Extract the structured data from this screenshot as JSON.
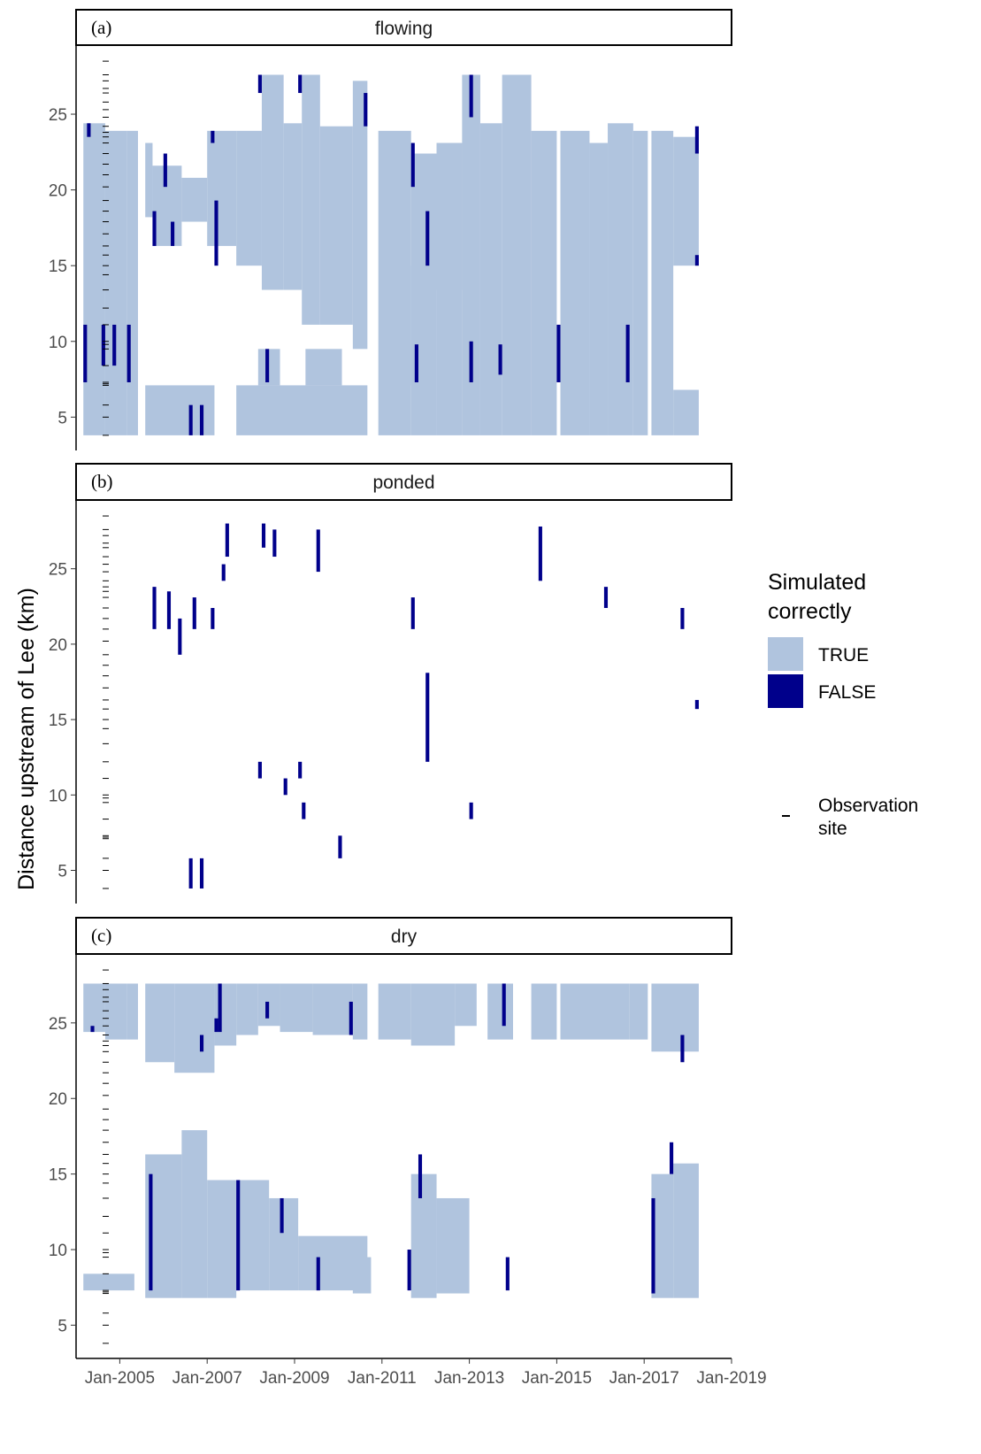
{
  "chart_data": {
    "type": "heatmap",
    "ylabel": "Distance upstream of Lee (km)",
    "xlim": [
      "2004-01",
      "2019-01"
    ],
    "ylim": [
      2.8,
      29.5
    ],
    "x_ticks": [
      "Jan-2005",
      "Jan-2007",
      "Jan-2009",
      "Jan-2011",
      "Jan-2013",
      "Jan-2015",
      "Jan-2017",
      "Jan-2019"
    ],
    "y_ticks": [
      5,
      10,
      15,
      20,
      25
    ],
    "colors": {
      "TRUE": "#b0c4de",
      "FALSE": "#00008b"
    },
    "legend": {
      "title_line1": "Simulated",
      "title_line2": "correctly",
      "true_label": "TRUE",
      "false_label": "FALSE",
      "obs_label_line1": "Observation",
      "obs_label_line2": "site",
      "placement": "right"
    },
    "observation_sites_km": [
      3.8,
      5.0,
      5.8,
      7.1,
      7.2,
      7.3,
      8.4,
      9.5,
      9.8,
      10.0,
      11.1,
      12.2,
      13.4,
      14.4,
      15.0,
      15.7,
      16.3,
      17.1,
      17.9,
      18.6,
      19.3,
      20.2,
      21.0,
      21.7,
      22.4,
      23.1,
      23.5,
      23.8,
      24.2,
      24.8,
      25.3,
      25.8,
      26.4,
      26.7,
      27.2,
      27.6,
      28.5
    ],
    "panels": [
      {
        "tag": "(a)",
        "title": "flowing",
        "true_blocks": [
          {
            "x0": "2004-03",
            "x1": "2004-09",
            "y0": 3.8,
            "y1": 24.4
          },
          {
            "x0": "2004-09",
            "x1": "2005-03",
            "y0": 3.8,
            "y1": 23.9
          },
          {
            "x0": "2005-03",
            "x1": "2005-06",
            "y0": 3.8,
            "y1": 23.9
          },
          {
            "x0": "2005-08",
            "x1": "2007-03",
            "y0": 3.8,
            "y1": 7.1
          },
          {
            "x0": "2005-08",
            "x1": "2005-10",
            "y0": 18.2,
            "y1": 23.1
          },
          {
            "x0": "2005-10",
            "x1": "2006-06",
            "y0": 16.3,
            "y1": 21.6
          },
          {
            "x0": "2006-06",
            "x1": "2007-01",
            "y0": 17.9,
            "y1": 20.8
          },
          {
            "x0": "2007-01",
            "x1": "2007-09",
            "y0": 16.3,
            "y1": 23.9
          },
          {
            "x0": "2007-09",
            "x1": "2008-04",
            "y0": 15.0,
            "y1": 23.9
          },
          {
            "x0": "2007-09",
            "x1": "2010-09",
            "y0": 3.8,
            "y1": 7.1
          },
          {
            "x0": "2008-04",
            "x1": "2008-10",
            "y0": 13.4,
            "y1": 27.6
          },
          {
            "x0": "2008-10",
            "x1": "2009-03",
            "y0": 13.4,
            "y1": 24.4
          },
          {
            "x0": "2009-03",
            "x1": "2009-08",
            "y0": 11.1,
            "y1": 27.6
          },
          {
            "x0": "2009-08",
            "x1": "2010-05",
            "y0": 11.1,
            "y1": 24.2
          },
          {
            "x0": "2010-05",
            "x1": "2010-09",
            "y0": 9.5,
            "y1": 27.2
          },
          {
            "x0": "2008-03",
            "x1": "2008-09",
            "y0": 7.1,
            "y1": 9.5
          },
          {
            "x0": "2009-04",
            "x1": "2010-02",
            "y0": 7.1,
            "y1": 9.5
          },
          {
            "x0": "2010-12",
            "x1": "2011-09",
            "y0": 3.8,
            "y1": 23.9
          },
          {
            "x0": "2011-09",
            "x1": "2012-04",
            "y0": 3.8,
            "y1": 22.4
          },
          {
            "x0": "2011-09",
            "x1": "2012-01",
            "y0": 7.1,
            "y1": 15.0
          },
          {
            "x0": "2012-04",
            "x1": "2012-11",
            "y0": 3.8,
            "y1": 23.1
          },
          {
            "x0": "2012-04",
            "x1": "2012-11",
            "y0": 13.4,
            "y1": 23.1
          },
          {
            "x0": "2012-11",
            "x1": "2013-04",
            "y0": 3.8,
            "y1": 27.6
          },
          {
            "x0": "2013-04",
            "x1": "2013-10",
            "y0": 3.8,
            "y1": 24.4
          },
          {
            "x0": "2013-10",
            "x1": "2014-06",
            "y0": 3.8,
            "y1": 27.6
          },
          {
            "x0": "2014-06",
            "x1": "2015-01",
            "y0": 3.8,
            "y1": 23.9
          },
          {
            "x0": "2015-02",
            "x1": "2015-10",
            "y0": 3.8,
            "y1": 23.9
          },
          {
            "x0": "2015-10",
            "x1": "2016-03",
            "y0": 3.8,
            "y1": 23.1
          },
          {
            "x0": "2016-03",
            "x1": "2016-10",
            "y0": 3.8,
            "y1": 24.4
          },
          {
            "x0": "2016-10",
            "x1": "2017-02",
            "y0": 3.8,
            "y1": 23.9
          },
          {
            "x0": "2017-03",
            "x1": "2017-09",
            "y0": 3.8,
            "y1": 23.9
          },
          {
            "x0": "2017-09",
            "x1": "2018-04",
            "y0": 3.8,
            "y1": 6.8
          },
          {
            "x0": "2017-09",
            "x1": "2018-04",
            "y0": 15.0,
            "y1": 23.5
          }
        ],
        "false_marks": [
          {
            "x": "2004-03",
            "y0": 7.3,
            "y1": 11.1
          },
          {
            "x": "2004-04",
            "y0": 23.5,
            "y1": 24.4
          },
          {
            "x": "2004-08",
            "y0": 8.4,
            "y1": 11.1
          },
          {
            "x": "2004-11",
            "y0": 8.4,
            "y1": 11.1
          },
          {
            "x": "2005-03",
            "y0": 7.3,
            "y1": 11.1
          },
          {
            "x": "2005-10",
            "y0": 16.3,
            "y1": 18.6
          },
          {
            "x": "2006-01",
            "y0": 20.2,
            "y1": 22.4
          },
          {
            "x": "2006-03",
            "y0": 16.3,
            "y1": 17.9
          },
          {
            "x": "2006-08",
            "y0": 3.8,
            "y1": 5.8
          },
          {
            "x": "2006-11",
            "y0": 3.8,
            "y1": 5.8
          },
          {
            "x": "2007-02",
            "y0": 23.1,
            "y1": 23.9
          },
          {
            "x": "2007-03",
            "y0": 15.0,
            "y1": 19.3
          },
          {
            "x": "2008-03",
            "y0": 26.4,
            "y1": 27.6
          },
          {
            "x": "2008-05",
            "y0": 7.3,
            "y1": 9.5
          },
          {
            "x": "2009-02",
            "y0": 26.4,
            "y1": 27.6
          },
          {
            "x": "2010-08",
            "y0": 24.2,
            "y1": 26.4
          },
          {
            "x": "2011-09",
            "y0": 20.2,
            "y1": 23.1
          },
          {
            "x": "2011-10",
            "y0": 7.3,
            "y1": 9.8
          },
          {
            "x": "2012-01",
            "y0": 15.0,
            "y1": 18.6
          },
          {
            "x": "2013-01",
            "y0": 24.8,
            "y1": 27.6
          },
          {
            "x": "2013-01",
            "y0": 7.3,
            "y1": 10.0
          },
          {
            "x": "2013-09",
            "y0": 7.8,
            "y1": 9.8
          },
          {
            "x": "2015-01",
            "y0": 7.3,
            "y1": 11.1
          },
          {
            "x": "2016-08",
            "y0": 7.3,
            "y1": 11.1
          },
          {
            "x": "2018-03",
            "y0": 15.0,
            "y1": 15.7
          },
          {
            "x": "2018-03",
            "y0": 22.4,
            "y1": 24.2
          }
        ]
      },
      {
        "tag": "(b)",
        "title": "ponded",
        "true_blocks": [],
        "false_marks": [
          {
            "x": "2006-08",
            "y0": 3.8,
            "y1": 5.8
          },
          {
            "x": "2006-11",
            "y0": 3.8,
            "y1": 5.8
          },
          {
            "x": "2005-10",
            "y0": 21.0,
            "y1": 23.8
          },
          {
            "x": "2006-02",
            "y0": 21.0,
            "y1": 23.5
          },
          {
            "x": "2006-05",
            "y0": 19.3,
            "y1": 21.7
          },
          {
            "x": "2006-09",
            "y0": 21.0,
            "y1": 23.1
          },
          {
            "x": "2007-02",
            "y0": 21.0,
            "y1": 22.4
          },
          {
            "x": "2007-05",
            "y0": 24.2,
            "y1": 25.3
          },
          {
            "x": "2007-06",
            "y0": 25.8,
            "y1": 28.0
          },
          {
            "x": "2008-04",
            "y0": 26.4,
            "y1": 28.0
          },
          {
            "x": "2008-07",
            "y0": 25.8,
            "y1": 27.6
          },
          {
            "x": "2009-07",
            "y0": 24.8,
            "y1": 27.6
          },
          {
            "x": "2008-03",
            "y0": 11.1,
            "y1": 12.2
          },
          {
            "x": "2008-10",
            "y0": 10.0,
            "y1": 11.1
          },
          {
            "x": "2009-02",
            "y0": 11.1,
            "y1": 12.2
          },
          {
            "x": "2009-03",
            "y0": 8.4,
            "y1": 9.5
          },
          {
            "x": "2010-01",
            "y0": 5.8,
            "y1": 7.3
          },
          {
            "x": "2011-09",
            "y0": 21.0,
            "y1": 23.1
          },
          {
            "x": "2012-01",
            "y0": 12.2,
            "y1": 18.1
          },
          {
            "x": "2013-01",
            "y0": 8.4,
            "y1": 9.5
          },
          {
            "x": "2014-08",
            "y0": 24.2,
            "y1": 27.8
          },
          {
            "x": "2016-02",
            "y0": 22.4,
            "y1": 23.8
          },
          {
            "x": "2017-11",
            "y0": 21.0,
            "y1": 22.4
          },
          {
            "x": "2018-03",
            "y0": 15.7,
            "y1": 16.3
          }
        ]
      },
      {
        "tag": "(c)",
        "title": "dry",
        "true_blocks": [
          {
            "x0": "2004-03",
            "x1": "2004-09",
            "y0": 24.4,
            "y1": 27.6
          },
          {
            "x0": "2004-09",
            "x1": "2005-03",
            "y0": 23.9,
            "y1": 27.6
          },
          {
            "x0": "2005-03",
            "x1": "2005-06",
            "y0": 23.9,
            "y1": 27.6
          },
          {
            "x0": "2005-08",
            "x1": "2006-04",
            "y0": 22.4,
            "y1": 27.6
          },
          {
            "x0": "2006-04",
            "x1": "2007-03",
            "y0": 21.7,
            "y1": 27.6
          },
          {
            "x0": "2007-03",
            "x1": "2007-09",
            "y0": 23.5,
            "y1": 27.6
          },
          {
            "x0": "2007-09",
            "x1": "2008-03",
            "y0": 24.2,
            "y1": 27.6
          },
          {
            "x0": "2008-03",
            "x1": "2008-09",
            "y0": 24.8,
            "y1": 27.6
          },
          {
            "x0": "2008-09",
            "x1": "2009-06",
            "y0": 24.4,
            "y1": 27.6
          },
          {
            "x0": "2009-06",
            "x1": "2010-05",
            "y0": 24.2,
            "y1": 27.6
          },
          {
            "x0": "2010-05",
            "x1": "2010-09",
            "y0": 23.9,
            "y1": 27.6
          },
          {
            "x0": "2010-12",
            "x1": "2011-09",
            "y0": 23.9,
            "y1": 27.6
          },
          {
            "x0": "2011-09",
            "x1": "2012-09",
            "y0": 23.5,
            "y1": 27.6
          },
          {
            "x0": "2012-09",
            "x1": "2013-03",
            "y0": 24.8,
            "y1": 27.6
          },
          {
            "x0": "2013-06",
            "x1": "2014-01",
            "y0": 23.9,
            "y1": 27.6
          },
          {
            "x0": "2014-06",
            "x1": "2015-01",
            "y0": 23.9,
            "y1": 27.6
          },
          {
            "x0": "2015-02",
            "x1": "2016-09",
            "y0": 23.9,
            "y1": 27.6
          },
          {
            "x0": "2016-09",
            "x1": "2017-02",
            "y0": 23.9,
            "y1": 27.6
          },
          {
            "x0": "2017-03",
            "x1": "2018-04",
            "y0": 23.1,
            "y1": 27.6
          },
          {
            "x0": "2004-03",
            "x1": "2005-05",
            "y0": 7.3,
            "y1": 8.4
          },
          {
            "x0": "2005-08",
            "x1": "2006-06",
            "y0": 6.8,
            "y1": 16.3
          },
          {
            "x0": "2006-06",
            "x1": "2007-01",
            "y0": 6.8,
            "y1": 17.9
          },
          {
            "x0": "2007-01",
            "x1": "2007-09",
            "y0": 6.8,
            "y1": 14.6
          },
          {
            "x0": "2007-09",
            "x1": "2008-06",
            "y0": 7.3,
            "y1": 14.6
          },
          {
            "x0": "2008-06",
            "x1": "2009-02",
            "y0": 7.3,
            "y1": 13.4
          },
          {
            "x0": "2009-02",
            "x1": "2010-09",
            "y0": 7.3,
            "y1": 10.9
          },
          {
            "x0": "2010-05",
            "x1": "2010-10",
            "y0": 7.1,
            "y1": 9.5
          },
          {
            "x0": "2011-09",
            "x1": "2012-04",
            "y0": 6.8,
            "y1": 15.0
          },
          {
            "x0": "2012-04",
            "x1": "2013-01",
            "y0": 7.1,
            "y1": 13.4
          },
          {
            "x0": "2017-03",
            "x1": "2017-09",
            "y0": 6.8,
            "y1": 15.0
          },
          {
            "x0": "2017-09",
            "x1": "2018-04",
            "y0": 6.8,
            "y1": 15.7
          }
        ],
        "false_marks": [
          {
            "x": "2004-05",
            "y0": 24.4,
            "y1": 24.8
          },
          {
            "x": "2005-09",
            "y0": 7.3,
            "y1": 15.0
          },
          {
            "x": "2006-11",
            "y0": 23.1,
            "y1": 24.2
          },
          {
            "x": "2007-03",
            "y0": 24.4,
            "y1": 25.3
          },
          {
            "x": "2007-04",
            "y0": 24.4,
            "y1": 27.6
          },
          {
            "x": "2007-09",
            "y0": 7.3,
            "y1": 14.6
          },
          {
            "x": "2008-05",
            "y0": 25.3,
            "y1": 26.4
          },
          {
            "x": "2008-09",
            "y0": 11.1,
            "y1": 13.4
          },
          {
            "x": "2009-07",
            "y0": 7.3,
            "y1": 9.5
          },
          {
            "x": "2010-04",
            "y0": 24.2,
            "y1": 26.4
          },
          {
            "x": "2011-08",
            "y0": 7.3,
            "y1": 10.0
          },
          {
            "x": "2011-11",
            "y0": 13.4,
            "y1": 16.3
          },
          {
            "x": "2013-10",
            "y0": 24.8,
            "y1": 27.6
          },
          {
            "x": "2013-11",
            "y0": 7.3,
            "y1": 9.5
          },
          {
            "x": "2017-03",
            "y0": 7.1,
            "y1": 13.4
          },
          {
            "x": "2017-08",
            "y0": 15.0,
            "y1": 17.1
          },
          {
            "x": "2017-11",
            "y0": 22.4,
            "y1": 24.2
          }
        ]
      }
    ]
  }
}
